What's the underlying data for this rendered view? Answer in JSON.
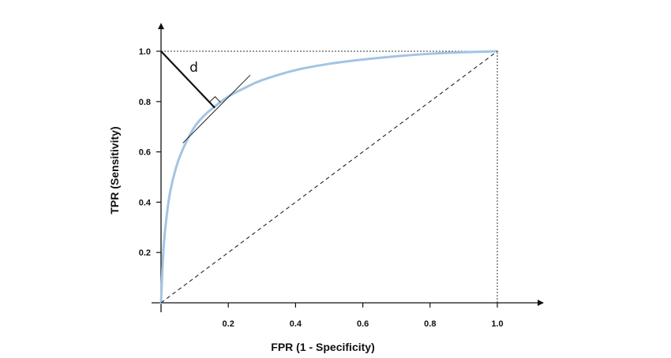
{
  "chart_data": {
    "type": "line",
    "title": "",
    "xlabel": "FPR  (1 - Specificity)",
    "ylabel": "TPR  (Sensitivity)",
    "xlim": [
      0,
      1.1
    ],
    "ylim": [
      0,
      1.1
    ],
    "x_ticks": [
      0.2,
      0.4,
      0.6,
      0.8,
      1.0
    ],
    "y_ticks": [
      0.2,
      0.4,
      0.6,
      0.8,
      1.0
    ],
    "x_tick_labels": [
      "0.2",
      "0.4",
      "0.6",
      "0.8",
      "1.0"
    ],
    "y_tick_labels": [
      "0.2",
      "0.4",
      "0.6",
      "0.8",
      "1.0"
    ],
    "grid": false,
    "legend": "none",
    "series": [
      {
        "style": "solid",
        "color": "#a3c4e3",
        "points": [
          [
            0,
            0
          ],
          [
            0.005,
            0.16
          ],
          [
            0.01,
            0.26
          ],
          [
            0.02,
            0.38
          ],
          [
            0.03,
            0.46
          ],
          [
            0.05,
            0.56
          ],
          [
            0.075,
            0.64
          ],
          [
            0.1,
            0.7
          ],
          [
            0.125,
            0.74
          ],
          [
            0.15,
            0.77
          ],
          [
            0.2,
            0.82
          ],
          [
            0.25,
            0.855
          ],
          [
            0.3,
            0.885
          ],
          [
            0.4,
            0.925
          ],
          [
            0.5,
            0.95
          ],
          [
            0.6,
            0.967
          ],
          [
            0.7,
            0.98
          ],
          [
            0.8,
            0.99
          ],
          [
            0.9,
            0.996
          ],
          [
            1.0,
            1.0
          ]
        ]
      },
      {
        "style": "dashed",
        "color": "#222222",
        "points": [
          [
            0,
            0
          ],
          [
            1.0,
            1.0
          ]
        ]
      }
    ],
    "reference_lines": [
      {
        "style": "dotted",
        "points": [
          [
            0,
            1.0
          ],
          [
            1.0,
            1.0
          ]
        ]
      },
      {
        "style": "dotted",
        "points": [
          [
            1.0,
            0
          ],
          [
            1.0,
            1.0
          ]
        ]
      }
    ],
    "annotations": [
      {
        "label": "d",
        "type": "distance-segment",
        "from": [
          0,
          1.0
        ],
        "to": [
          0.16,
          0.775
        ]
      },
      {
        "type": "tangent-line",
        "from": [
          0.065,
          0.635
        ],
        "to": [
          0.265,
          0.905
        ]
      }
    ]
  }
}
